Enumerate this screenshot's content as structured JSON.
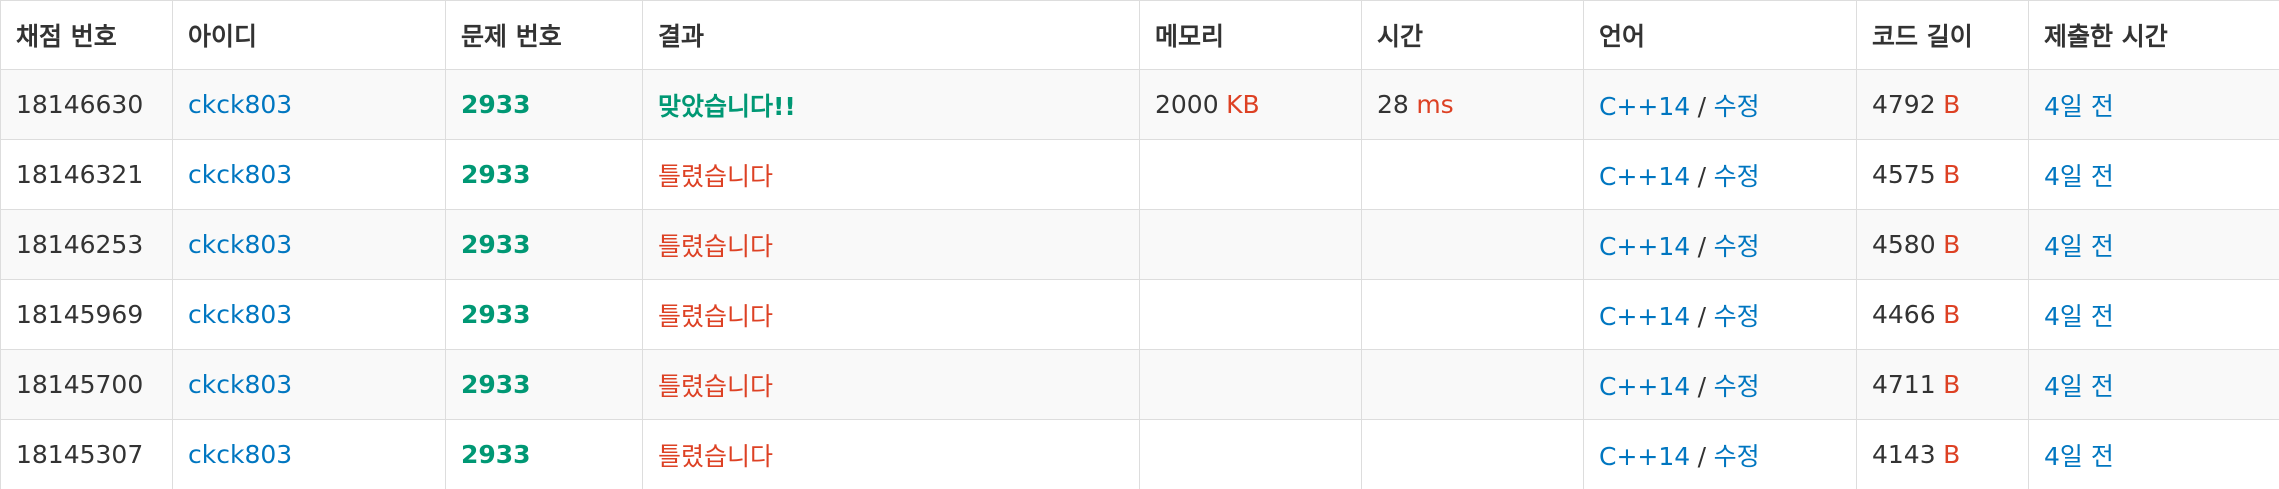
{
  "headers": {
    "submission_id": "채점 번호",
    "user_id": "아이디",
    "problem_id": "문제 번호",
    "result": "결과",
    "memory": "메모리",
    "time": "시간",
    "language": "언어",
    "code_length": "코드 길이",
    "submitted_at": "제출한 시간"
  },
  "units": {
    "memory": "KB",
    "time": "ms",
    "code_length": "B"
  },
  "edit_label": "수정",
  "separator": "/",
  "colors": {
    "link": "#0076c0",
    "accepted": "#009874",
    "wrong": "#dd4124",
    "border": "#dddddd",
    "stripe": "#f9f9f9"
  },
  "rows": [
    {
      "submission_id": "18146630",
      "user_id": "ckck803",
      "problem_id": "2933",
      "result": "맞았습니다!!",
      "result_status": "accepted",
      "memory": "2000",
      "time": "28",
      "language": "C++14",
      "code_length": "4792",
      "submitted_at": "4일 전"
    },
    {
      "submission_id": "18146321",
      "user_id": "ckck803",
      "problem_id": "2933",
      "result": "틀렸습니다",
      "result_status": "wrong",
      "memory": "",
      "time": "",
      "language": "C++14",
      "code_length": "4575",
      "submitted_at": "4일 전"
    },
    {
      "submission_id": "18146253",
      "user_id": "ckck803",
      "problem_id": "2933",
      "result": "틀렸습니다",
      "result_status": "wrong",
      "memory": "",
      "time": "",
      "language": "C++14",
      "code_length": "4580",
      "submitted_at": "4일 전"
    },
    {
      "submission_id": "18145969",
      "user_id": "ckck803",
      "problem_id": "2933",
      "result": "틀렸습니다",
      "result_status": "wrong",
      "memory": "",
      "time": "",
      "language": "C++14",
      "code_length": "4466",
      "submitted_at": "4일 전"
    },
    {
      "submission_id": "18145700",
      "user_id": "ckck803",
      "problem_id": "2933",
      "result": "틀렸습니다",
      "result_status": "wrong",
      "memory": "",
      "time": "",
      "language": "C++14",
      "code_length": "4711",
      "submitted_at": "4일 전"
    },
    {
      "submission_id": "18145307",
      "user_id": "ckck803",
      "problem_id": "2933",
      "result": "틀렸습니다",
      "result_status": "wrong",
      "memory": "",
      "time": "",
      "language": "C++14",
      "code_length": "4143",
      "submitted_at": "4일 전"
    }
  ]
}
